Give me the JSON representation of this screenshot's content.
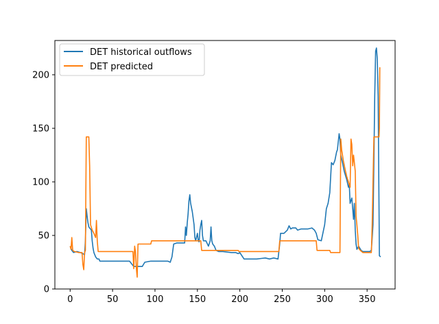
{
  "chart_data": {
    "type": "line",
    "title": "",
    "xlabel": "",
    "ylabel": "",
    "xlim": [
      -18,
      383
    ],
    "ylim": [
      0,
      232
    ],
    "grid": false,
    "legend_position": "top-left",
    "x_ticks": [
      0,
      50,
      100,
      150,
      200,
      250,
      300,
      350
    ],
    "y_ticks": [
      0,
      50,
      100,
      150,
      200
    ],
    "series": [
      {
        "name": "DET historical outflows",
        "color": "#1f77b4",
        "points": [
          [
            0,
            40
          ],
          [
            2,
            36
          ],
          [
            4,
            34
          ],
          [
            8,
            35
          ],
          [
            12,
            34
          ],
          [
            15,
            33
          ],
          [
            17,
            32
          ],
          [
            18,
            45
          ],
          [
            19,
            75
          ],
          [
            20,
            68
          ],
          [
            21,
            62
          ],
          [
            22,
            58
          ],
          [
            23,
            57
          ],
          [
            25,
            55
          ],
          [
            26,
            45
          ],
          [
            27,
            38
          ],
          [
            28,
            34
          ],
          [
            30,
            30
          ],
          [
            32,
            28
          ],
          [
            34,
            28
          ],
          [
            35,
            26
          ],
          [
            40,
            26
          ],
          [
            45,
            26
          ],
          [
            50,
            26
          ],
          [
            60,
            26
          ],
          [
            70,
            26
          ],
          [
            75,
            21
          ],
          [
            80,
            21
          ],
          [
            85,
            21
          ],
          [
            88,
            25
          ],
          [
            95,
            26
          ],
          [
            100,
            26
          ],
          [
            115,
            26
          ],
          [
            118,
            25
          ],
          [
            120,
            30
          ],
          [
            122,
            42
          ],
          [
            126,
            43
          ],
          [
            130,
            43
          ],
          [
            135,
            43
          ],
          [
            136,
            58
          ],
          [
            137,
            50
          ],
          [
            138,
            62
          ],
          [
            139,
            70
          ],
          [
            140,
            82
          ],
          [
            141,
            88
          ],
          [
            142,
            80
          ],
          [
            144,
            72
          ],
          [
            146,
            60
          ],
          [
            147,
            48
          ],
          [
            148,
            45
          ],
          [
            150,
            52
          ],
          [
            151,
            45
          ],
          [
            152,
            44
          ],
          [
            153,
            55
          ],
          [
            154,
            60
          ],
          [
            155,
            64
          ],
          [
            156,
            50
          ],
          [
            157,
            45
          ],
          [
            160,
            45
          ],
          [
            163,
            40
          ],
          [
            165,
            45
          ],
          [
            166,
            58
          ],
          [
            167,
            45
          ],
          [
            168,
            42
          ],
          [
            170,
            40
          ],
          [
            172,
            36
          ],
          [
            175,
            35
          ],
          [
            180,
            35
          ],
          [
            190,
            34
          ],
          [
            195,
            34
          ],
          [
            198,
            33
          ],
          [
            200,
            34
          ],
          [
            205,
            28
          ],
          [
            210,
            28
          ],
          [
            220,
            28
          ],
          [
            230,
            29
          ],
          [
            235,
            28
          ],
          [
            240,
            29
          ],
          [
            245,
            28
          ],
          [
            247,
            42
          ],
          [
            248,
            52
          ],
          [
            252,
            52
          ],
          [
            256,
            55
          ],
          [
            258,
            59
          ],
          [
            260,
            56
          ],
          [
            262,
            57
          ],
          [
            266,
            57
          ],
          [
            268,
            55
          ],
          [
            272,
            56
          ],
          [
            276,
            56
          ],
          [
            280,
            56
          ],
          [
            285,
            57
          ],
          [
            288,
            55
          ],
          [
            290,
            52
          ],
          [
            292,
            46
          ],
          [
            296,
            45
          ],
          [
            300,
            60
          ],
          [
            302,
            75
          ],
          [
            304,
            80
          ],
          [
            306,
            90
          ],
          [
            308,
            118
          ],
          [
            310,
            116
          ],
          [
            312,
            120
          ],
          [
            314,
            128
          ],
          [
            315,
            130
          ],
          [
            317,
            145
          ],
          [
            318,
            140
          ],
          [
            319,
            125
          ],
          [
            321,
            118
          ],
          [
            323,
            110
          ],
          [
            326,
            102
          ],
          [
            328,
            95
          ],
          [
            329,
            98
          ],
          [
            330,
            80
          ],
          [
            332,
            85
          ],
          [
            333,
            75
          ],
          [
            334,
            65
          ],
          [
            335,
            80
          ],
          [
            336,
            55
          ],
          [
            337,
            42
          ],
          [
            338,
            37
          ],
          [
            340,
            40
          ],
          [
            343,
            36
          ],
          [
            345,
            35
          ],
          [
            350,
            35
          ],
          [
            353,
            35
          ],
          [
            355,
            36
          ],
          [
            356,
            48
          ],
          [
            357,
            60
          ],
          [
            358,
            120
          ],
          [
            359,
            180
          ],
          [
            360,
            222
          ],
          [
            361,
            225
          ],
          [
            362,
            215
          ],
          [
            363,
            180
          ],
          [
            364,
            80
          ],
          [
            364.5,
            31
          ],
          [
            366,
            30
          ]
        ]
      },
      {
        "name": "DET predicted",
        "color": "#ff7f0e",
        "points": [
          [
            0,
            40
          ],
          [
            1,
            37
          ],
          [
            2,
            48
          ],
          [
            3,
            36
          ],
          [
            5,
            35
          ],
          [
            10,
            34
          ],
          [
            14,
            34
          ],
          [
            15,
            23
          ],
          [
            16,
            18
          ],
          [
            17,
            34
          ],
          [
            18,
            36
          ],
          [
            19,
            142
          ],
          [
            22,
            142
          ],
          [
            23,
            115
          ],
          [
            24,
            60
          ],
          [
            26,
            55
          ],
          [
            28,
            52
          ],
          [
            30,
            48
          ],
          [
            31,
            64
          ],
          [
            32,
            45
          ],
          [
            33,
            35
          ],
          [
            40,
            35
          ],
          [
            50,
            35
          ],
          [
            60,
            35
          ],
          [
            70,
            35
          ],
          [
            74,
            35
          ],
          [
            75,
            19
          ],
          [
            76,
            40
          ],
          [
            77,
            35
          ],
          [
            78,
            20
          ],
          [
            79,
            11
          ],
          [
            80,
            42
          ],
          [
            90,
            42
          ],
          [
            95,
            42
          ],
          [
            96,
            45
          ],
          [
            100,
            45
          ],
          [
            120,
            45
          ],
          [
            140,
            45
          ],
          [
            150,
            45
          ],
          [
            154,
            45
          ],
          [
            155,
            36
          ],
          [
            160,
            36
          ],
          [
            180,
            36
          ],
          [
            198,
            36
          ],
          [
            199,
            35
          ],
          [
            210,
            35
          ],
          [
            230,
            35
          ],
          [
            246,
            35
          ],
          [
            247,
            45
          ],
          [
            260,
            45
          ],
          [
            280,
            45
          ],
          [
            290,
            45
          ],
          [
            291,
            36
          ],
          [
            300,
            36
          ],
          [
            306,
            36
          ],
          [
            307,
            34
          ],
          [
            318,
            34
          ],
          [
            319,
            140
          ],
          [
            320,
            130
          ],
          [
            322,
            120
          ],
          [
            324,
            112
          ],
          [
            326,
            105
          ],
          [
            328,
            100
          ],
          [
            330,
            95
          ],
          [
            331,
            140
          ],
          [
            332,
            135
          ],
          [
            333,
            115
          ],
          [
            334,
            125
          ],
          [
            335,
            118
          ],
          [
            336,
            110
          ],
          [
            337,
            68
          ],
          [
            338,
            60
          ],
          [
            339,
            50
          ],
          [
            340,
            38
          ],
          [
            342,
            36
          ],
          [
            345,
            34
          ],
          [
            350,
            34
          ],
          [
            353,
            34
          ],
          [
            355,
            34
          ],
          [
            356,
            60
          ],
          [
            357,
            100
          ],
          [
            358,
            142
          ],
          [
            360,
            142
          ],
          [
            362,
            142
          ],
          [
            364,
            142
          ],
          [
            364.5,
            150
          ],
          [
            365,
            207
          ]
        ]
      }
    ]
  }
}
